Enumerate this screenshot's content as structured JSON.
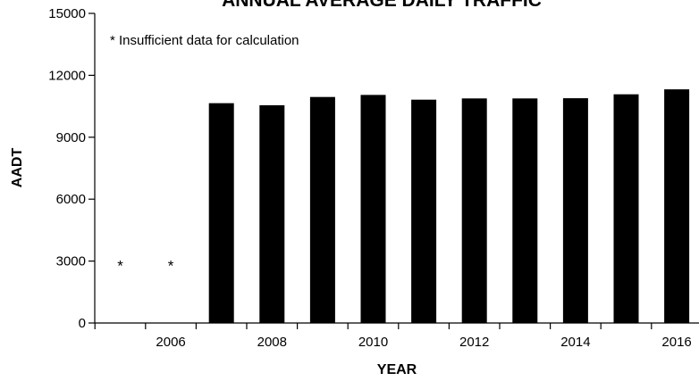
{
  "chart_data": {
    "type": "bar",
    "title": "ANNUAL AVERAGE DAILY TRAFFIC",
    "xlabel": "YEAR",
    "ylabel": "AADT",
    "ylim": [
      0,
      15000
    ],
    "yticks": [
      0,
      3000,
      6000,
      9000,
      12000,
      15000
    ],
    "xticks": [
      2006,
      2008,
      2010,
      2012,
      2014,
      2016
    ],
    "categories": [
      2005,
      2006,
      2007,
      2008,
      2009,
      2010,
      2011,
      2012,
      2013,
      2014,
      2015,
      2016
    ],
    "values": [
      null,
      null,
      10650,
      10550,
      10950,
      11050,
      10820,
      10880,
      10880,
      10890,
      11080,
      11320
    ],
    "missing_marker": "*",
    "annotation": "* Insufficient data for calculation",
    "bar_color": "#000000",
    "grid": false,
    "legend": false
  }
}
